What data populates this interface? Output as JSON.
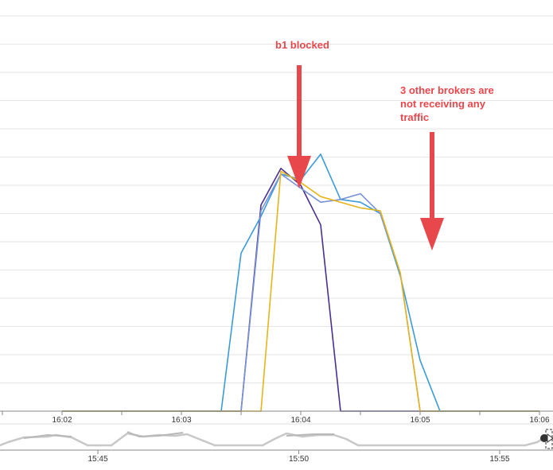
{
  "chart_data": {
    "type": "line",
    "x_ticks": [
      "16:02",
      "16:03",
      "16:04",
      "16:05",
      "16:06"
    ],
    "x": [
      "16:02:00",
      "16:02:20",
      "16:02:40",
      "16:03:00",
      "16:03:10",
      "16:03:20",
      "16:03:30",
      "16:03:40",
      "16:03:50",
      "16:04:00",
      "16:04:10",
      "16:04:20",
      "16:04:30",
      "16:04:40",
      "16:04:50",
      "16:05:00",
      "16:05:10",
      "16:05:20",
      "16:05:30",
      "16:05:40",
      "16:05:50",
      "16:06:00"
    ],
    "series": [
      {
        "color": "#4a2f8f",
        "values": [
          0,
          0,
          0,
          0,
          0,
          0,
          0,
          7.3,
          8.6,
          8.0,
          6.6,
          0,
          0,
          0,
          0,
          0,
          0,
          0,
          0,
          0,
          0,
          0
        ]
      },
      {
        "color": "#3c9bd6",
        "values": [
          0,
          0,
          0,
          0,
          0,
          0,
          5.6,
          6.9,
          8.4,
          8.2,
          9.1,
          7.5,
          7.4,
          7.0,
          4.8,
          1.8,
          0,
          0,
          0,
          0,
          0,
          0
        ]
      },
      {
        "color": "#7a93d6",
        "values": [
          0,
          0,
          0,
          0,
          0,
          0,
          0,
          7.1,
          8.4,
          7.9,
          7.4,
          7.5,
          7.7,
          7.0,
          4.9,
          0,
          0,
          0,
          0,
          0,
          0,
          0
        ]
      },
      {
        "color": "#e6b51a",
        "values": [
          0,
          0,
          0,
          0,
          0,
          0,
          0,
          0,
          8.5,
          8.1,
          7.6,
          7.4,
          7.2,
          7.1,
          4.9,
          0,
          0,
          0,
          0,
          0,
          0,
          0
        ]
      }
    ],
    "ylim": [
      0,
      14
    ],
    "grid": true,
    "navigator_ticks": [
      "15:45",
      "15:50",
      "15:55"
    ]
  },
  "annotations": {
    "b1_blocked": "b1 blocked",
    "other_brokers": [
      "3 other brokers are",
      "not receiving any",
      "traffic"
    ]
  },
  "colors": {
    "annotation": "#e8474c"
  }
}
